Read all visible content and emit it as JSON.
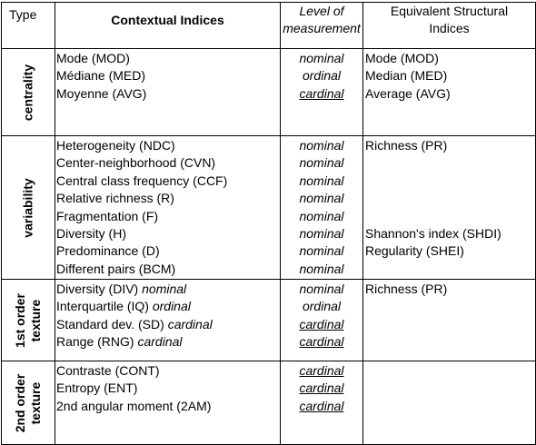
{
  "header": {
    "type": "Type",
    "contextual": "Contextual Indices",
    "level_line1": "Level of",
    "level_line2": "measurement",
    "equiv_line1": "Equivalent Structural",
    "equiv_line2": "Indices"
  },
  "groups": [
    {
      "type_label": [
        "centrality"
      ],
      "contextual": [
        "Mode (MOD)",
        "Médiane (MED)",
        "Moyenne (AVG)"
      ],
      "levels": [
        {
          "text": "nominal",
          "underline": false
        },
        {
          "text": "ordinal",
          "underline": false
        },
        {
          "text": "cardinal",
          "underline": true
        }
      ],
      "equivalent": [
        "Mode (MOD)",
        "Median (MED)",
        "Average (AVG)"
      ]
    },
    {
      "type_label": [
        "variability"
      ],
      "contextual": [
        "Heterogeneity (NDC)",
        "Center-neighborhood (CVN)",
        "Central class frequency (CCF)",
        "Relative richness (R)",
        "Fragmentation (F)",
        "Diversity (H)",
        "Predominance (D)",
        "Different pairs (BCM)"
      ],
      "levels": [
        {
          "text": "nominal",
          "underline": false
        },
        {
          "text": "nominal",
          "underline": false
        },
        {
          "text": "nominal",
          "underline": false
        },
        {
          "text": "nominal",
          "underline": false
        },
        {
          "text": "nominal",
          "underline": false
        },
        {
          "text": "nominal",
          "underline": false
        },
        {
          "text": "nominal",
          "underline": false
        },
        {
          "text": "nominal",
          "underline": false
        }
      ],
      "equivalent_top": [
        "Richness (PR)"
      ],
      "equivalent_bottom": [
        "Shannon's index (SHDI)",
        "Regularity (SHEI)"
      ]
    },
    {
      "type_label": [
        "1st order",
        "texture"
      ],
      "contextual": [
        {
          "name": "Diversity (DIV)",
          "level": "nominal"
        },
        {
          "name": "Interquartile (IQ)",
          "level": "ordinal"
        },
        {
          "name": "Standard dev. (SD)",
          "level": "cardinal"
        },
        {
          "name": "Range (RNG)",
          "level": "cardinal"
        }
      ],
      "levels": [
        {
          "text": "nominal",
          "underline": false
        },
        {
          "text": "ordinal",
          "underline": false
        },
        {
          "text": "cardinal",
          "underline": true
        },
        {
          "text": "cardinal",
          "underline": true
        }
      ],
      "equivalent": [
        "Richness (PR)"
      ]
    },
    {
      "type_label": [
        "2nd order",
        "texture"
      ],
      "contextual": [
        "Contraste (CONT)",
        "Entropy (ENT)",
        "2nd angular moment (2AM)"
      ],
      "levels": [
        {
          "text": "cardinal",
          "underline": true
        },
        {
          "text": "cardinal",
          "underline": true
        },
        {
          "text": "cardinal",
          "underline": true
        }
      ],
      "equivalent": []
    }
  ]
}
